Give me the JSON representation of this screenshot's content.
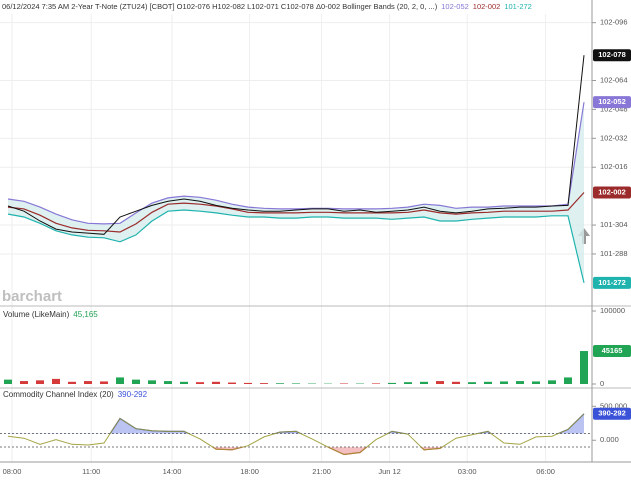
{
  "chart_data": [
    {
      "type": "line",
      "title": "06/12/2024 7:35 AM 2-Year T-Note (ZTU24) [CBOT] O102-076 H102-082 L102-071 C102-078 Δ0-002 Bollinger Bands (20, 2, 0, ...)",
      "xlim": [
        0,
        37
      ],
      "xticks": [
        {
          "value": 0.75,
          "label": "08:00"
        },
        {
          "value": 5.7,
          "label": "11:00"
        },
        {
          "value": 10.75,
          "label": "14:00"
        },
        {
          "value": 15.6,
          "label": "18:00"
        },
        {
          "value": 20.1,
          "label": "21:00"
        },
        {
          "value": 24.35,
          "label": "Jun 12"
        },
        {
          "value": 29.2,
          "label": "03:00"
        },
        {
          "value": 34.1,
          "label": "06:00"
        }
      ],
      "ylim": [
        101.81,
        102.315
      ],
      "yticks": [
        {
          "value": 102.3,
          "label": "102-096"
        },
        {
          "value": 102.2,
          "label": "102-064"
        },
        {
          "value": 102.15,
          "label": "102-048"
        },
        {
          "value": 102.1,
          "label": "102-032"
        },
        {
          "value": 102.05,
          "label": "102-016"
        },
        {
          "value": 101.95,
          "label": "101-304"
        },
        {
          "value": 101.9,
          "label": "101-288"
        }
      ],
      "grid": true,
      "band_fill": "#d6ecec",
      "series": [
        {
          "color": "#111111",
          "last_label": "102-078",
          "values": [
            101.983,
            101.974,
            101.957,
            101.943,
            101.938,
            101.936,
            101.934,
            101.964,
            101.974,
            101.984,
            101.991,
            101.995,
            101.991,
            101.984,
            101.979,
            101.976,
            101.974,
            101.974,
            101.976,
            101.978,
            101.978,
            101.974,
            101.976,
            101.972,
            101.974,
            101.976,
            101.981,
            101.974,
            101.971,
            101.974,
            101.978,
            101.979,
            101.981,
            101.981,
            101.983,
            101.984,
            102.24375
          ]
        },
        {
          "color": "#8877d6",
          "last_label": "102-052",
          "values": [
            101.995,
            101.991,
            101.981,
            101.969,
            101.959,
            101.953,
            101.952,
            101.953,
            101.971,
            101.988,
            101.997,
            102.0,
            101.998,
            101.993,
            101.986,
            101.981,
            101.979,
            101.978,
            101.978,
            101.979,
            101.979,
            101.978,
            101.978,
            101.978,
            101.979,
            101.981,
            101.986,
            101.984,
            101.979,
            101.981,
            101.981,
            101.983,
            101.983,
            101.983,
            101.983,
            101.986,
            102.1625
          ]
        },
        {
          "color": "#9b2b2b",
          "last_label": "102-002",
          "values": [
            101.981,
            101.978,
            101.967,
            101.953,
            101.945,
            101.941,
            101.94,
            101.938,
            101.952,
            101.972,
            101.986,
            101.988,
            101.986,
            101.983,
            101.978,
            101.972,
            101.971,
            101.971,
            101.971,
            101.972,
            101.972,
            101.971,
            101.971,
            101.971,
            101.971,
            101.972,
            101.976,
            101.971,
            101.969,
            101.971,
            101.972,
            101.974,
            101.974,
            101.974,
            101.974,
            101.976,
            102.00625
          ]
        },
        {
          "color": "#1fb3ae",
          "last_label": "101-272",
          "values": [
            101.969,
            101.964,
            101.953,
            101.94,
            101.933,
            101.929,
            101.928,
            101.921,
            101.933,
            101.957,
            101.974,
            101.976,
            101.974,
            101.971,
            101.967,
            101.964,
            101.964,
            101.962,
            101.962,
            101.964,
            101.964,
            101.962,
            101.962,
            101.962,
            101.96,
            101.962,
            101.964,
            101.957,
            101.957,
            101.96,
            101.962,
            101.964,
            101.964,
            101.964,
            101.966,
            101.966,
            101.85
          ]
        }
      ]
    },
    {
      "type": "bar",
      "title": "Volume (LikeMain)",
      "last_value_label": "45,165",
      "ylim": [
        0,
        100000
      ],
      "yticks": [
        0,
        100000
      ],
      "up_color": "#22a455",
      "down_color": "#d43a3a",
      "values": [
        6000,
        4000,
        5000,
        7000,
        3000,
        4000,
        3500,
        9000,
        6000,
        5000,
        4000,
        3000,
        2500,
        3000,
        2000,
        1500,
        1200,
        1000,
        800,
        600,
        500,
        700,
        600,
        800,
        1500,
        2500,
        3000,
        4000,
        3000,
        2500,
        3000,
        3500,
        4000,
        3500,
        5000,
        9000,
        45165
      ]
    },
    {
      "type": "line",
      "title": "Commodity Channel Index (20)",
      "last_label": "390-292",
      "ylim": [
        -320,
        740
      ],
      "yticks": [
        {
          "value": 500,
          "label": "500.000"
        },
        {
          "value": 0,
          "label": "0.000"
        }
      ],
      "levels": [
        100,
        -100
      ],
      "color": "#9a9a30",
      "above_color": "#3a52d8",
      "below_color": "#e0474c",
      "values": [
        60,
        30,
        -60,
        10,
        -60,
        -70,
        -40,
        320,
        170,
        140,
        130,
        130,
        20,
        -130,
        -140,
        -80,
        50,
        120,
        130,
        20,
        -100,
        -210,
        -180,
        10,
        130,
        90,
        -140,
        -120,
        30,
        80,
        130,
        -40,
        -60,
        50,
        60,
        160,
        390.292
      ]
    }
  ],
  "watermark": "barchart"
}
